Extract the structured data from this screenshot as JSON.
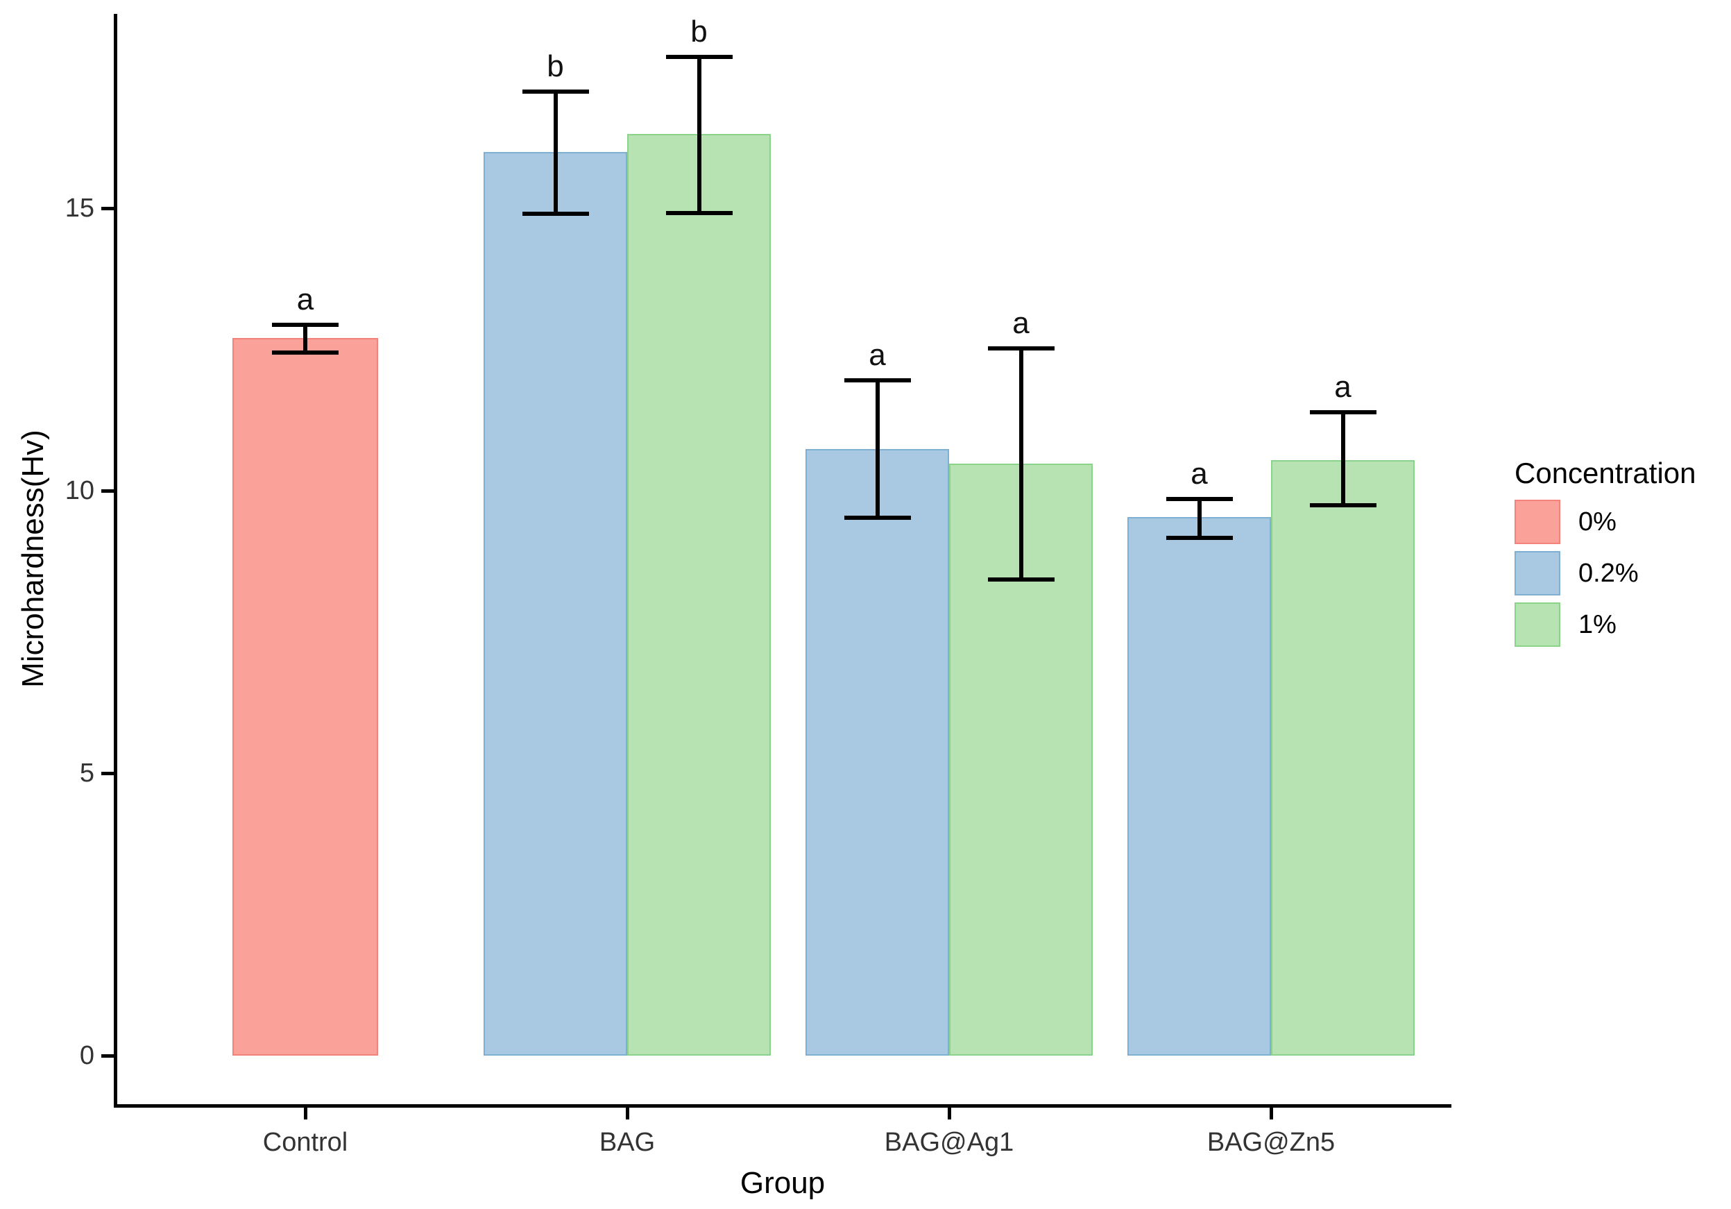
{
  "chart_data": {
    "type": "bar",
    "title": "",
    "xlabel": "Group",
    "ylabel": "Microhardness(Hv)",
    "categories": [
      "Control",
      "BAG",
      "BAG@Ag1",
      "BAG@Zn5"
    ],
    "yticks": [
      0,
      5,
      10,
      15
    ],
    "ylim": [
      0,
      18.4
    ],
    "grid": false,
    "legend": {
      "title": "Concentration",
      "position": "right",
      "items": [
        {
          "label": "0%",
          "fill": "#FAA19A",
          "border": "#F4817A"
        },
        {
          "label": "0.2%",
          "fill": "#A9C9E3",
          "border": "#7FB0D4"
        },
        {
          "label": "1%",
          "fill": "#B7E3B2",
          "border": "#8BD28A"
        }
      ]
    },
    "series_names": [
      "0%",
      "0.2%",
      "1%"
    ],
    "groups": [
      {
        "label": "Control",
        "bars": [
          {
            "series": "0%",
            "value": 12.7,
            "err_up": 0.23,
            "err_down": 0.26,
            "letter": "a"
          }
        ]
      },
      {
        "label": "BAG",
        "bars": [
          {
            "series": "0.2%",
            "value": 16.0,
            "err_up": 1.06,
            "err_down": 1.1,
            "letter": "b"
          },
          {
            "series": "1%",
            "value": 16.31,
            "err_up": 1.37,
            "err_down": 1.4,
            "letter": "b"
          }
        ]
      },
      {
        "label": "BAG@Ag1",
        "bars": [
          {
            "series": "0.2%",
            "value": 10.74,
            "err_up": 1.21,
            "err_down": 1.22,
            "letter": "a"
          },
          {
            "series": "1%",
            "value": 10.48,
            "err_up": 2.04,
            "err_down": 2.05,
            "letter": "a"
          }
        ]
      },
      {
        "label": "BAG@Zn5",
        "bars": [
          {
            "series": "0.2%",
            "value": 9.53,
            "err_up": 0.32,
            "err_down": 0.36,
            "letter": "a"
          },
          {
            "series": "1%",
            "value": 10.54,
            "err_up": 0.85,
            "err_down": 0.8,
            "letter": "a"
          }
        ]
      }
    ]
  }
}
